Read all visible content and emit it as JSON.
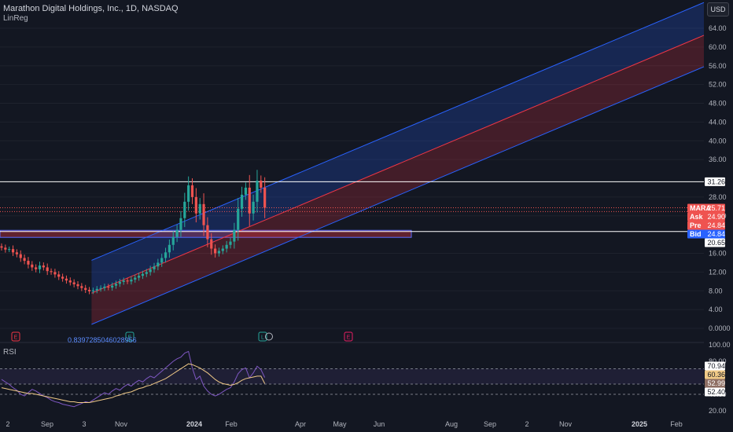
{
  "header": {
    "title": "Marathon Digital Holdings, Inc., 1D, NASDAQ",
    "indicator": "LinReg",
    "currency": "USD"
  },
  "rsi_panel": {
    "label": "RSI"
  },
  "regression_value": "0.8397285046028956",
  "colors": {
    "background": "#131722",
    "up": "#26a69a",
    "down": "#ef5350",
    "channel_upper": "#2962ff",
    "channel_lower": "#f23645",
    "rsi_line": "#7e57c2",
    "rsi_ma": "#f0c987"
  },
  "price_tags": [
    {
      "label": "",
      "value": "31.26",
      "style": "white"
    },
    {
      "label": "MARA",
      "value": "25.71",
      "style": "red"
    },
    {
      "label": "Ask",
      "value": "24.90",
      "style": "red"
    },
    {
      "label": "Pre",
      "value": "24.84",
      "style": "red"
    },
    {
      "label": "Bid",
      "value": "24.84",
      "style": "blue"
    },
    {
      "label": "",
      "value": "20.65",
      "style": "white"
    }
  ],
  "rsi_tags": [
    {
      "value": "70.94",
      "style": "white"
    },
    {
      "value": "60.36",
      "style": "tan"
    },
    {
      "value": "52.99",
      "style": "darktan"
    },
    {
      "value": "52.40",
      "style": "white"
    }
  ],
  "events": [
    {
      "icon": "E",
      "kind": "earnings"
    },
    {
      "icon": "E",
      "kind": "earnings"
    },
    {
      "icon": "L",
      "kind": "earnings"
    },
    {
      "icon": "E",
      "kind": "earnings"
    }
  ],
  "chart_data": [
    {
      "type": "candlestick",
      "title": "Marathon Digital Holdings, Inc., 1D, NASDAQ",
      "y_ticks": [
        "64.00",
        "60.00",
        "56.00",
        "52.00",
        "48.00",
        "44.00",
        "40.00",
        "36.00",
        "28.00",
        "24.00",
        "16.00",
        "12.00",
        "8.00",
        "4.00",
        "0.0000"
      ],
      "x_ticks": [
        "2",
        "Sep",
        "3",
        "Nov",
        "2024",
        "Feb",
        "Apr",
        "May",
        "Jun",
        "Aug",
        "Sep",
        "2",
        "Nov",
        "2025",
        "Feb"
      ],
      "ylim": [
        0,
        66
      ],
      "close_series": [
        17.2,
        16.8,
        16.9,
        16.2,
        15.8,
        15.0,
        14.4,
        13.6,
        13.0,
        12.6,
        13.4,
        13.0,
        12.2,
        12.0,
        11.5,
        11.0,
        10.6,
        10.2,
        9.8,
        9.4,
        9.0,
        8.6,
        8.2,
        7.9,
        8.1,
        8.4,
        8.6,
        8.9,
        8.7,
        9.1,
        9.5,
        9.9,
        10.2,
        10.0,
        10.4,
        10.8,
        11.2,
        11.6,
        12.0,
        12.6,
        13.2,
        14.0,
        15.0,
        16.2,
        17.8,
        19.5,
        21.0,
        23.5,
        27.0,
        30.5,
        28.0,
        24.5,
        26.5,
        22.0,
        19.0,
        17.0,
        16.0,
        16.5,
        17.0,
        17.8,
        18.5,
        21.0,
        25.5,
        28.5,
        30.0,
        24.5,
        27.0,
        31.5,
        30.0,
        25.71
      ],
      "horizontal_lines": [
        31.26,
        20.65
      ],
      "supply_zone": [
        19.4,
        20.9
      ],
      "regression_channel": {
        "x_start_index": 24,
        "upper_start": 14.5,
        "upper_end": 69.5,
        "mid_start": 7.5,
        "mid_end": 62.5,
        "lower_start": 0.84,
        "lower_end": 55.8
      }
    },
    {
      "type": "line",
      "title": "RSI",
      "y_ticks": [
        "100.00",
        "80.00",
        "40.00",
        "20.00"
      ],
      "ylim": [
        20,
        100
      ],
      "bands": [
        70.94,
        52.4
      ],
      "rsi_values": [
        58,
        55,
        52,
        48,
        45,
        40,
        38,
        42,
        46,
        44,
        41,
        38,
        36,
        33,
        31,
        30,
        28,
        27,
        26,
        25,
        27,
        29,
        31,
        30,
        33,
        36,
        39,
        42,
        40,
        44,
        47,
        45,
        49,
        52,
        50,
        54,
        57,
        55,
        59,
        62,
        60,
        64,
        68,
        72,
        76,
        80,
        83,
        85,
        90,
        92,
        72,
        58,
        62,
        50,
        44,
        40,
        38,
        40,
        43,
        46,
        48,
        55,
        65,
        70,
        72,
        60,
        66,
        74,
        70,
        60.36
      ],
      "rsi_ma": [
        48,
        47,
        46,
        45,
        44,
        43,
        42,
        41,
        41,
        40,
        39,
        38,
        37,
        36,
        35,
        34,
        33,
        32,
        31,
        31,
        30,
        30,
        30,
        30,
        31,
        32,
        33,
        34,
        35,
        36,
        38,
        39,
        41,
        42,
        43,
        45,
        47,
        48,
        50,
        51,
        53,
        55,
        57,
        59,
        62,
        65,
        68,
        71,
        74,
        77,
        76,
        74,
        72,
        69,
        66,
        62,
        58,
        55,
        53,
        52,
        51,
        52,
        54,
        57,
        59,
        60,
        61,
        62,
        62,
        52.99
      ]
    }
  ]
}
